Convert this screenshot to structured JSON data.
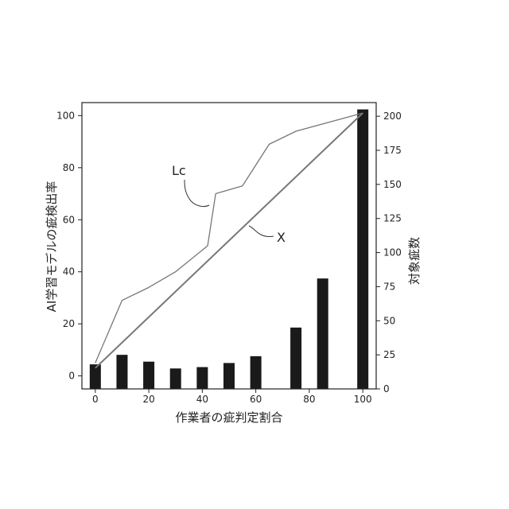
{
  "chart_data": {
    "type": "bar",
    "xlabel": "作業者の疵判定割合",
    "ylabel": "AI学習モデルの疵検出率",
    "ylabel_right": "対象疵数",
    "xlim": [
      -5,
      105
    ],
    "ylim": [
      -5,
      105
    ],
    "ylim_right": [
      0,
      210
    ],
    "xticks": [
      0,
      20,
      40,
      60,
      80,
      100
    ],
    "yticks": [
      0,
      20,
      40,
      60,
      80,
      100
    ],
    "yticks_right": [
      0,
      25,
      50,
      75,
      100,
      125,
      150,
      175,
      200
    ],
    "grid": false,
    "colors": {
      "bars": "#1a1a1a",
      "line": "#777777",
      "axis": "#222222"
    },
    "bars": {
      "x": [
        0,
        10,
        20,
        30,
        40,
        50,
        60,
        75,
        85,
        100
      ],
      "values": [
        18,
        25,
        20,
        15,
        16,
        19,
        24,
        45,
        81,
        205
      ]
    },
    "series": [
      {
        "name": "Lc",
        "x": [
          0,
          10,
          20,
          30,
          42,
          45,
          55,
          65,
          75,
          100
        ],
        "values": [
          5,
          29,
          34,
          40,
          50,
          70,
          73,
          89,
          94,
          101
        ]
      },
      {
        "name": "X",
        "x": [
          0,
          100
        ],
        "values": [
          3,
          101
        ]
      }
    ],
    "annotations": [
      "Lc",
      "X"
    ]
  }
}
